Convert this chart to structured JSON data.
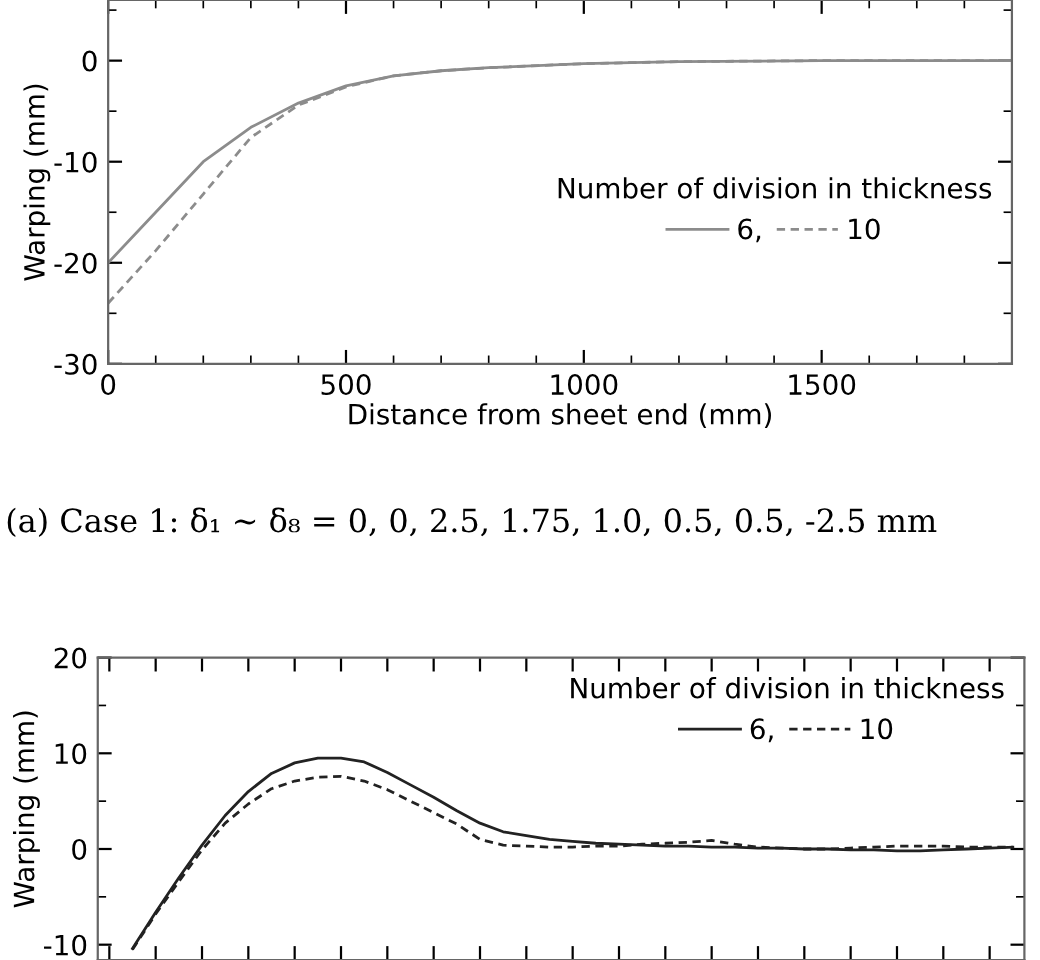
{
  "chart_data": [
    {
      "type": "line",
      "xlabel": "Distance from sheet end (mm)",
      "ylabel": "Warping (mm)",
      "legend_title": "Number of division in thickness",
      "legend": "right",
      "xlim": [
        0,
        1900
      ],
      "xticks": [
        0,
        500,
        1000,
        1500
      ],
      "ylim": [
        -30,
        6
      ],
      "yticks": [
        -30,
        -20,
        -10,
        0
      ],
      "annotations": [
        "(a) Case 1: δ₁ ~ δ₈ = 0, 0, 2.5, 1.75, 1.0, 0.5, 0.5, -2.5 mm"
      ],
      "series": [
        {
          "name": "6,",
          "color": "#8c8c8c",
          "line_style": "solid",
          "x": [
            0,
            100,
            200,
            300,
            400,
            500,
            600,
            700,
            800,
            1000,
            1200,
            1500,
            1900
          ],
          "values": [
            -20,
            -15,
            -10,
            -6.6,
            -4.2,
            -2.5,
            -1.5,
            -1.0,
            -0.7,
            -0.3,
            -0.1,
            0,
            0
          ]
        },
        {
          "name": "10",
          "color": "#8c8c8c",
          "line_style": "dashed",
          "x": [
            0,
            100,
            200,
            300,
            400,
            500,
            600,
            700,
            800,
            1000,
            1200,
            1500,
            1900
          ],
          "values": [
            -24,
            -18.8,
            -13.2,
            -7.6,
            -4.4,
            -2.6,
            -1.5,
            -1.0,
            -0.7,
            -0.3,
            -0.1,
            0,
            0
          ]
        }
      ]
    },
    {
      "type": "line",
      "ylabel": "Warping (mm)",
      "legend_title": "Number of division in thickness",
      "legend": "top right",
      "tick_labels": "y",
      "categories": [
        null,
        null,
        null,
        null,
        null,
        null,
        null,
        null,
        null,
        null,
        null,
        null,
        null,
        null,
        null,
        null,
        null,
        null,
        null,
        null,
        null,
        null,
        null,
        null,
        null,
        null,
        null,
        null,
        null,
        null,
        null,
        null,
        null,
        null,
        null,
        null,
        null,
        null,
        null,
        null
      ],
      "ylim": [
        -11.6,
        20
      ],
      "yticks": [
        -10,
        0,
        10,
        20
      ],
      "series": [
        {
          "name": "6,",
          "color": "#222222",
          "line_style": "solid",
          "values": [
            null,
            -10.4,
            -6.6,
            -3.0,
            0.4,
            3.5,
            6.0,
            7.9,
            9.0,
            9.5,
            9.5,
            9.1,
            8.0,
            6.7,
            5.4,
            4.0,
            2.7,
            1.8,
            1.4,
            1.0,
            0.8,
            0.6,
            0.5,
            0.4,
            0.3,
            0.3,
            0.2,
            0.2,
            0.1,
            0.1,
            0.0,
            0.0,
            -0.1,
            -0.1,
            -0.2,
            -0.2,
            -0.1,
            0.0,
            0.1,
            0.2
          ]
        },
        {
          "name": "10",
          "color": "#222222",
          "line_style": "dashed",
          "values": [
            null,
            -10.5,
            -6.8,
            -3.4,
            -0.1,
            2.7,
            4.7,
            6.3,
            7.1,
            7.5,
            7.6,
            7.1,
            6.2,
            5.0,
            3.8,
            2.6,
            1.0,
            0.4,
            0.3,
            0.2,
            0.2,
            0.3,
            0.3,
            0.5,
            0.6,
            0.7,
            0.9,
            0.5,
            0.2,
            0.1,
            0.0,
            0.0,
            0.1,
            0.2,
            0.3,
            0.3,
            0.3,
            0.2,
            0.2,
            0.2
          ]
        }
      ]
    }
  ]
}
